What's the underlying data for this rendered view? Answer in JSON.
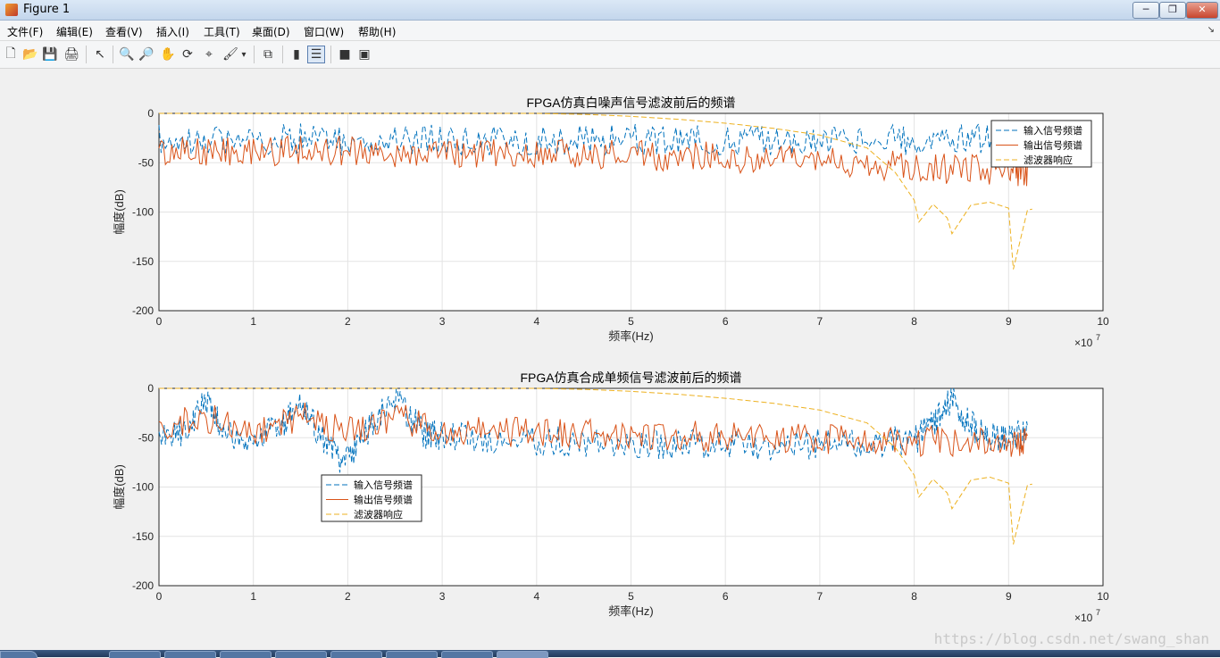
{
  "window": {
    "title": "Figure 1",
    "minimize": "─",
    "maximize": "❐",
    "close": "✕"
  },
  "menu": [
    "文件(F)",
    "编辑(E)",
    "查看(V)",
    "插入(I)",
    "工具(T)",
    "桌面(D)",
    "窗口(W)",
    "帮助(H)"
  ],
  "menu_arrow": "↘",
  "toolbar": [
    {
      "name": "new-figure-icon",
      "glyph": "🗋"
    },
    {
      "name": "open-file-icon",
      "glyph": "📂"
    },
    {
      "name": "save-icon",
      "glyph": "💾"
    },
    {
      "name": "print-icon",
      "glyph": "🖨"
    },
    {
      "name": "edit-plot-arrow-icon",
      "glyph": "↖"
    },
    {
      "name": "zoom-in-icon",
      "glyph": "🔍"
    },
    {
      "name": "zoom-out-icon",
      "glyph": "🔎"
    },
    {
      "name": "pan-hand-icon",
      "glyph": "✋"
    },
    {
      "name": "rotate-3d-icon",
      "glyph": "⟳"
    },
    {
      "name": "data-cursor-icon",
      "glyph": "⌖"
    },
    {
      "name": "brush-icon",
      "glyph": "🖌"
    },
    {
      "name": "brush-dropdown-icon",
      "glyph": "▾"
    },
    {
      "name": "link-plot-icon",
      "glyph": "⧉"
    },
    {
      "name": "colorbar-icon",
      "glyph": "▮"
    },
    {
      "name": "legend-icon",
      "glyph": "☰"
    },
    {
      "name": "hide-plot-tools-icon",
      "glyph": "■"
    },
    {
      "name": "show-plot-tools-icon",
      "glyph": "▣"
    }
  ],
  "watermark": "https://blog.csdn.net/swang_shan",
  "colors": {
    "input": "#0072bd",
    "output": "#d95319",
    "filter": "#edb120"
  },
  "chart_data": [
    {
      "type": "line",
      "title": "FPGA仿真白噪声信号滤波前后的频谱",
      "xlabel": "频率(Hz)",
      "ylabel": "幅度(dB)",
      "xlim": [
        0,
        10
      ],
      "ylim": [
        -200,
        0
      ],
      "xticks": [
        0,
        1,
        2,
        3,
        4,
        5,
        6,
        7,
        8,
        9,
        10
      ],
      "yticks": [
        0,
        -50,
        -100,
        -150,
        -200
      ],
      "xscale_label": "×10",
      "xscale_exp": "7",
      "grid": true,
      "legend_position": "top-right",
      "legend": [
        "输入信号频谱",
        "输出信号频谱",
        "滤波器响应"
      ],
      "series": [
        {
          "name": "输入信号频谱",
          "style": "dashed",
          "x": [
            0,
            0.5,
            1,
            1.5,
            2,
            2.5,
            3,
            3.5,
            4,
            4.5,
            5,
            5.5,
            6,
            6.5,
            7,
            7.5,
            8,
            8.5,
            9,
            9.2
          ],
          "y": [
            -18,
            -20,
            -19,
            -18,
            -20,
            -19,
            -18,
            -20,
            -19,
            -20,
            -18,
            -21,
            -19,
            -20,
            -18,
            -19,
            -20,
            -18,
            -19,
            -17
          ]
        },
        {
          "name": "输出信号频谱",
          "style": "solid",
          "x": [
            0,
            0.5,
            1,
            1.5,
            2,
            2.5,
            3,
            3.5,
            4,
            4.5,
            5,
            5.5,
            6,
            6.5,
            7,
            7.5,
            8,
            8.5,
            9,
            9.2
          ],
          "y": [
            -30,
            -30,
            -31,
            -30,
            -31,
            -32,
            -32,
            -33,
            -33,
            -34,
            -35,
            -36,
            -37,
            -39,
            -41,
            -44,
            -47,
            -49,
            -51,
            -52
          ]
        },
        {
          "name": "滤波器响应",
          "style": "dashed",
          "x": [
            0,
            1,
            2,
            3,
            4,
            4.5,
            5,
            5.5,
            6,
            6.5,
            7,
            7.5,
            7.8,
            8.0,
            8.05,
            8.2,
            8.35,
            8.4,
            8.6,
            8.8,
            9.0,
            9.05,
            9.2,
            9.25
          ],
          "y": [
            0,
            0,
            0,
            0,
            0,
            -1,
            -3,
            -6,
            -10,
            -15,
            -22,
            -35,
            -60,
            -88,
            -110,
            -92,
            -106,
            -122,
            -93,
            -90,
            -96,
            -158,
            -98,
            -97
          ]
        }
      ]
    },
    {
      "type": "line",
      "title": "FPGA仿真合成单频信号滤波前后的频谱",
      "xlabel": "频率(Hz)",
      "ylabel": "幅度(dB)",
      "xlim": [
        0,
        10
      ],
      "ylim": [
        -200,
        0
      ],
      "xticks": [
        0,
        1,
        2,
        3,
        4,
        5,
        6,
        7,
        8,
        9,
        10
      ],
      "yticks": [
        0,
        -50,
        -100,
        -150,
        -200
      ],
      "xscale_label": "×10",
      "xscale_exp": "7",
      "grid": true,
      "legend_position": "middle-left",
      "legend": [
        "输入信号频谱",
        "输出信号频谱",
        "滤波器响应"
      ],
      "series": [
        {
          "name": "输入信号频谱",
          "style": "dashed",
          "x": [
            0,
            0.3,
            0.5,
            0.7,
            1,
            1.3,
            1.5,
            1.7,
            1.95,
            2.2,
            2.5,
            2.8,
            3,
            3.5,
            4,
            4.5,
            5,
            5.5,
            6,
            6.5,
            7,
            7.5,
            8,
            8.2,
            8.4,
            8.6,
            8.8,
            9,
            9.2
          ],
          "y": [
            -38,
            -35,
            -2,
            -38,
            -46,
            -30,
            -2,
            -40,
            -70,
            -36,
            -2,
            -38,
            -40,
            -45,
            -46,
            -47,
            -48,
            -49,
            -50,
            -50,
            -49,
            -48,
            -45,
            -30,
            -2,
            -30,
            -42,
            -40,
            -38
          ]
        },
        {
          "name": "输出信号频谱",
          "style": "solid",
          "x": [
            0,
            0.5,
            1,
            1.5,
            2,
            2.5,
            3,
            3.5,
            4,
            4.5,
            5,
            5.5,
            6,
            6.5,
            7,
            7.5,
            8,
            8.5,
            9,
            9.2
          ],
          "y": [
            -32,
            -22,
            -36,
            -20,
            -36,
            -22,
            -34,
            -36,
            -38,
            -38,
            -40,
            -40,
            -42,
            -43,
            -44,
            -45,
            -46,
            -46,
            -47,
            -48
          ]
        },
        {
          "name": "滤波器响应",
          "style": "dashed",
          "x": [
            0,
            1,
            2,
            3,
            4,
            4.5,
            5,
            5.5,
            6,
            6.5,
            7,
            7.5,
            7.8,
            8.0,
            8.05,
            8.2,
            8.35,
            8.4,
            8.6,
            8.8,
            9.0,
            9.05,
            9.2,
            9.25
          ],
          "y": [
            0,
            0,
            0,
            0,
            0,
            -1,
            -3,
            -6,
            -10,
            -15,
            -22,
            -35,
            -60,
            -88,
            -110,
            -92,
            -106,
            -122,
            -93,
            -90,
            -96,
            -158,
            -98,
            -97
          ]
        }
      ]
    }
  ]
}
